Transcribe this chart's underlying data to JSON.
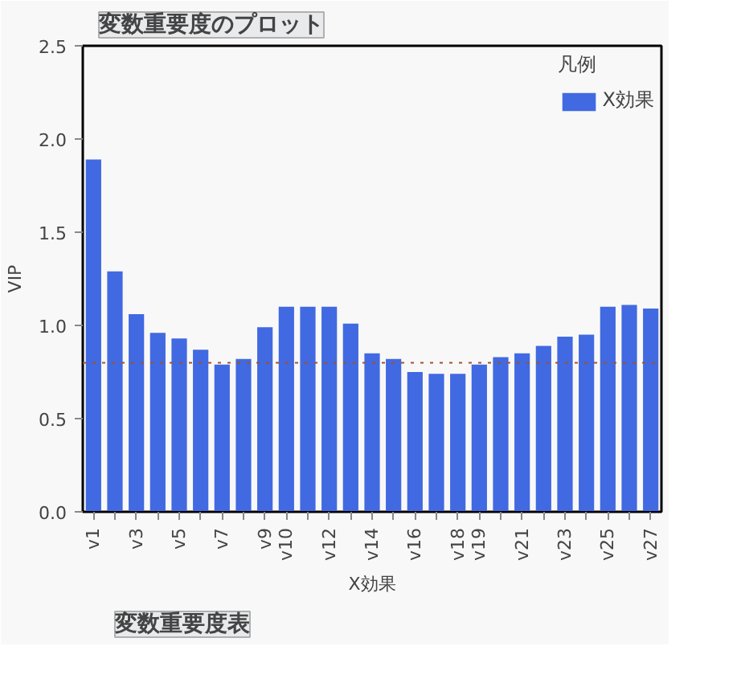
{
  "chart_data": {
    "type": "bar",
    "title": "変数重要度のプロット",
    "xlabel": "X効果",
    "ylabel": "VIP",
    "legend_title": "凡例",
    "annotations": [
      "変数重要度表"
    ],
    "categories": [
      "v1",
      null,
      "v3",
      null,
      "v5",
      null,
      "v7",
      null,
      "v9",
      "v10",
      null,
      "v12",
      null,
      "v14",
      null,
      "v16",
      null,
      "v18",
      "v19",
      null,
      "v21",
      null,
      "v23",
      null,
      "v25",
      null,
      "v27"
    ],
    "series": [
      {
        "name": "X効果",
        "color": "#4169e1",
        "values": [
          1.89,
          1.29,
          1.06,
          0.96,
          0.93,
          0.87,
          0.79,
          0.82,
          0.99,
          1.1,
          1.1,
          1.1,
          1.01,
          0.85,
          0.82,
          0.75,
          0.74,
          0.74,
          0.79,
          0.83,
          0.85,
          0.89,
          0.94,
          0.95,
          1.1,
          1.11,
          1.09
        ]
      }
    ],
    "ylim": [
      0,
      2.5
    ],
    "yticks": [
      {
        "value": 0,
        "label": "0.0"
      },
      {
        "value": 0.5,
        "label": "0.5"
      },
      {
        "value": 1,
        "label": "1.0"
      },
      {
        "value": 1.5,
        "label": "1.5"
      },
      {
        "value": 2,
        "label": "2.0"
      },
      {
        "value": 2.5,
        "label": "2.5"
      }
    ],
    "ref_lines": [
      {
        "axis": "y",
        "value": 0.8,
        "color": "#a0522d",
        "line_style": "dotted"
      }
    ],
    "grid": false,
    "legend": "right"
  }
}
